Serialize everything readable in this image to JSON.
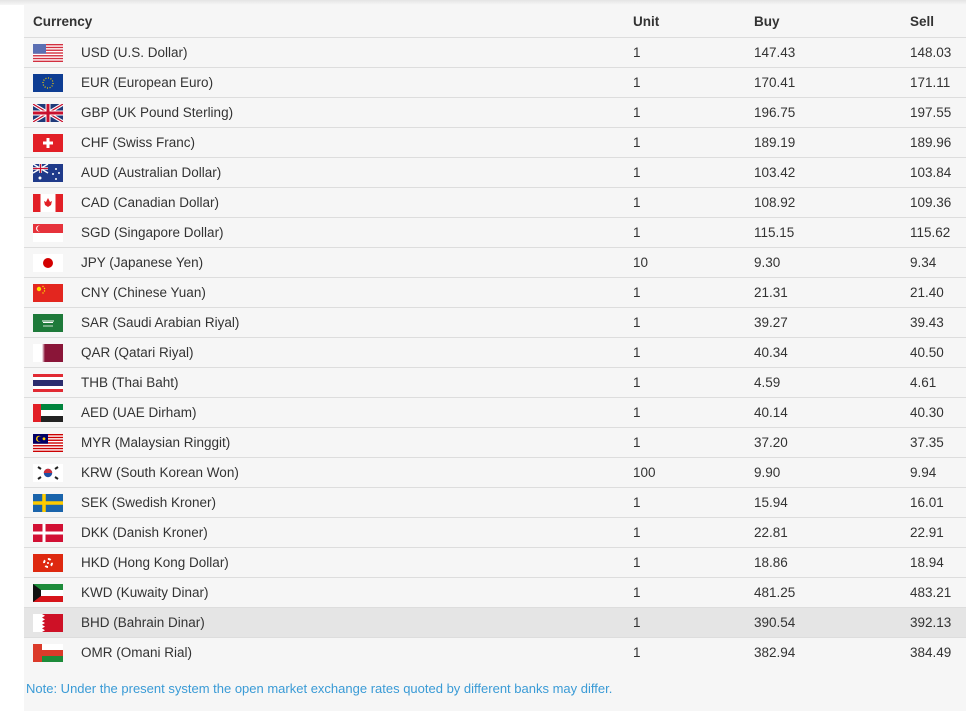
{
  "headers": {
    "currency": "Currency",
    "unit": "Unit",
    "buy": "Buy",
    "sell": "Sell"
  },
  "rows": [
    {
      "flag": "us",
      "currency": "USD (U.S. Dollar)",
      "unit": "1",
      "buy": "147.43",
      "sell": "148.03"
    },
    {
      "flag": "eu",
      "currency": "EUR (European Euro)",
      "unit": "1",
      "buy": "170.41",
      "sell": "171.11"
    },
    {
      "flag": "gb",
      "currency": "GBP (UK Pound Sterling)",
      "unit": "1",
      "buy": "196.75",
      "sell": "197.55"
    },
    {
      "flag": "ch",
      "currency": "CHF (Swiss Franc)",
      "unit": "1",
      "buy": "189.19",
      "sell": "189.96"
    },
    {
      "flag": "au",
      "currency": "AUD (Australian Dollar)",
      "unit": "1",
      "buy": "103.42",
      "sell": "103.84"
    },
    {
      "flag": "ca",
      "currency": "CAD (Canadian Dollar)",
      "unit": "1",
      "buy": "108.92",
      "sell": "109.36"
    },
    {
      "flag": "sg",
      "currency": "SGD (Singapore Dollar)",
      "unit": "1",
      "buy": "115.15",
      "sell": "115.62"
    },
    {
      "flag": "jp",
      "currency": "JPY (Japanese Yen)",
      "unit": "10",
      "buy": "9.30",
      "sell": "9.34"
    },
    {
      "flag": "cn",
      "currency": "CNY (Chinese Yuan)",
      "unit": "1",
      "buy": "21.31",
      "sell": "21.40"
    },
    {
      "flag": "sa",
      "currency": "SAR (Saudi Arabian Riyal)",
      "unit": "1",
      "buy": "39.27",
      "sell": "39.43"
    },
    {
      "flag": "qa",
      "currency": "QAR (Qatari Riyal)",
      "unit": "1",
      "buy": "40.34",
      "sell": "40.50"
    },
    {
      "flag": "th",
      "currency": "THB (Thai Baht)",
      "unit": "1",
      "buy": "4.59",
      "sell": "4.61"
    },
    {
      "flag": "ae",
      "currency": "AED (UAE Dirham)",
      "unit": "1",
      "buy": "40.14",
      "sell": "40.30"
    },
    {
      "flag": "my",
      "currency": "MYR (Malaysian Ringgit)",
      "unit": "1",
      "buy": "37.20",
      "sell": "37.35"
    },
    {
      "flag": "kr",
      "currency": "KRW (South Korean Won)",
      "unit": "100",
      "buy": "9.90",
      "sell": "9.94"
    },
    {
      "flag": "se",
      "currency": "SEK (Swedish Kroner)",
      "unit": "1",
      "buy": "15.94",
      "sell": "16.01"
    },
    {
      "flag": "dk",
      "currency": "DKK (Danish Kroner)",
      "unit": "1",
      "buy": "22.81",
      "sell": "22.91"
    },
    {
      "flag": "hk",
      "currency": "HKD (Hong Kong Dollar)",
      "unit": "1",
      "buy": "18.86",
      "sell": "18.94"
    },
    {
      "flag": "kw",
      "currency": "KWD (Kuwaity Dinar)",
      "unit": "1",
      "buy": "481.25",
      "sell": "483.21"
    },
    {
      "flag": "bh",
      "currency": "BHD (Bahrain Dinar)",
      "unit": "1",
      "buy": "390.54",
      "sell": "392.13",
      "highlighted": true
    },
    {
      "flag": "om",
      "currency": "OMR (Omani Rial)",
      "unit": "1",
      "buy": "382.94",
      "sell": "384.49"
    }
  ],
  "note": "Note: Under the present system the open market exchange rates quoted by different banks may differ.",
  "colors": {
    "note": "#3a9bd6",
    "highlight_row": "#e5e5e5",
    "panel": "#f6f6f6"
  }
}
